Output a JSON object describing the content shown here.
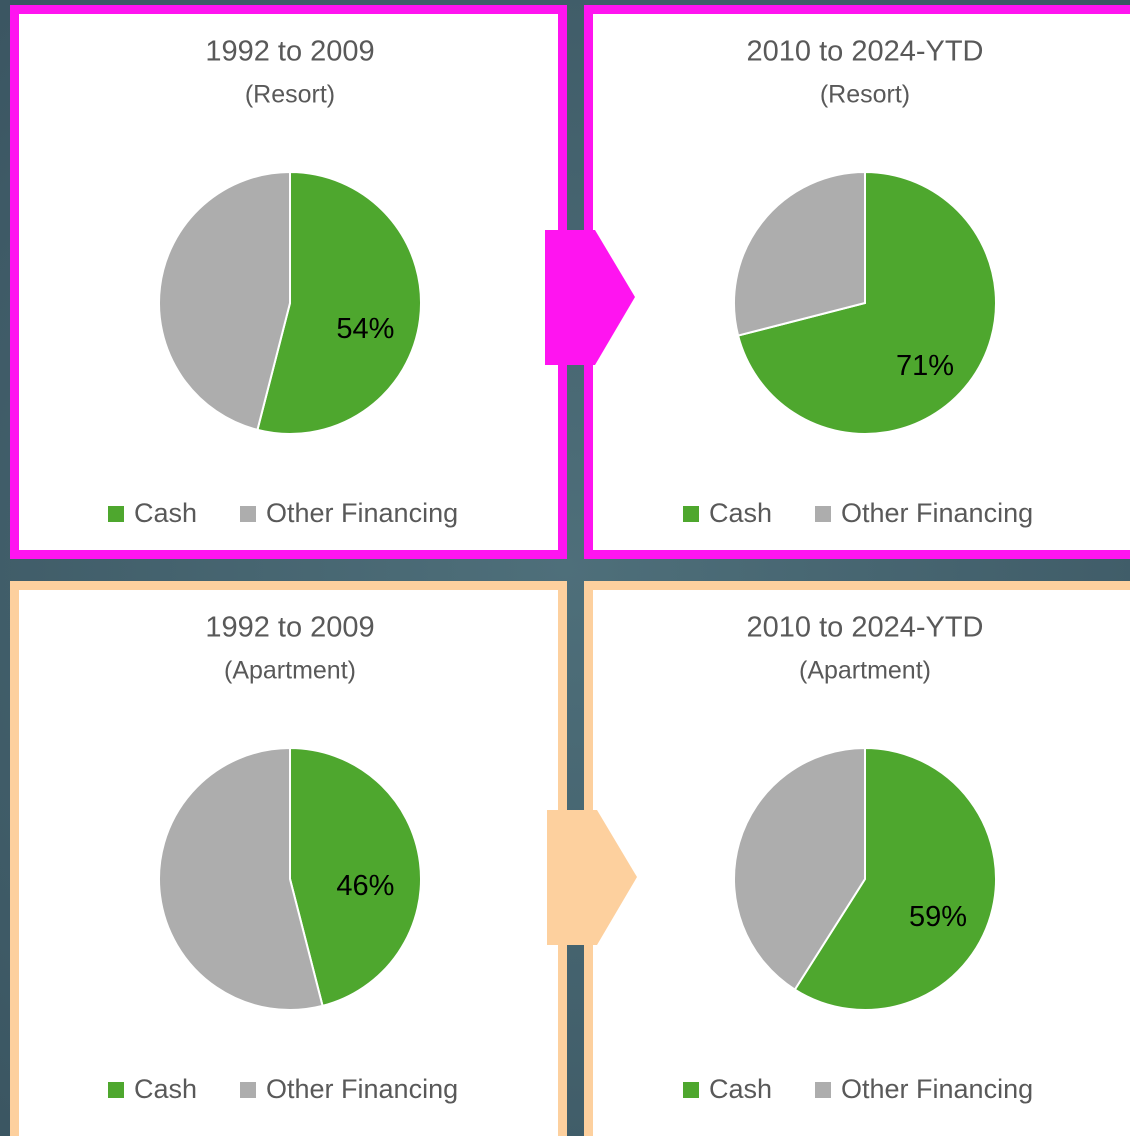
{
  "chart_data": [
    {
      "type": "pie",
      "title": "1992 to 2009",
      "subtitle": "(Resort)",
      "categories": [
        "Cash",
        "Other Financing"
      ],
      "values": [
        54,
        46
      ],
      "value_labels": [
        "54%",
        null
      ],
      "colors": [
        "#4ea72e",
        "#adadad"
      ]
    },
    {
      "type": "pie",
      "title": "2010 to 2024-YTD",
      "subtitle": "(Resort)",
      "categories": [
        "Cash",
        "Other Financing"
      ],
      "values": [
        71,
        29
      ],
      "value_labels": [
        "71%",
        null
      ],
      "colors": [
        "#4ea72e",
        "#adadad"
      ]
    },
    {
      "type": "pie",
      "title": "1992 to 2009",
      "subtitle": "(Apartment)",
      "categories": [
        "Cash",
        "Other Financing"
      ],
      "values": [
        46,
        54
      ],
      "value_labels": [
        "46%",
        null
      ],
      "colors": [
        "#4ea72e",
        "#adadad"
      ]
    },
    {
      "type": "pie",
      "title": "2010 to 2024-YTD",
      "subtitle": "(Apartment)",
      "categories": [
        "Cash",
        "Other Financing"
      ],
      "values": [
        59,
        41
      ],
      "value_labels": [
        "59%",
        null
      ],
      "colors": [
        "#4ea72e",
        "#adadad"
      ]
    }
  ]
}
